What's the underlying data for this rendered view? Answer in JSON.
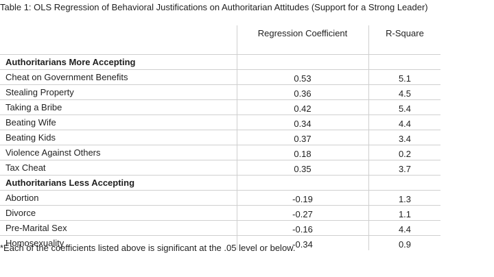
{
  "title": "Table 1: OLS Regression of Behavioral Justifications on Authoritarian Attitudes (Support for a Strong Leader)",
  "columns": {
    "regression": "Regression Coefficient",
    "rsquare": "R-Square"
  },
  "sections": [
    {
      "heading": "Authoritarians More Accepting",
      "rows": [
        {
          "label": "Cheat on Government Benefits",
          "coef": "0.53",
          "r2": "5.1"
        },
        {
          "label": "Stealing Property",
          "coef": "0.36",
          "r2": "4.5"
        },
        {
          "label": "Taking a Bribe",
          "coef": "0.42",
          "r2": "5.4"
        },
        {
          "label": "Beating Wife",
          "coef": "0.34",
          "r2": "4.4"
        },
        {
          "label": "Beating Kids",
          "coef": "0.37",
          "r2": "3.4"
        },
        {
          "label": "Violence Against Others",
          "coef": "0.18",
          "r2": "0.2"
        },
        {
          "label": "Tax Cheat",
          "coef": "0.35",
          "r2": "3.7"
        }
      ]
    },
    {
      "heading": "Authoritarians Less Accepting",
      "rows": [
        {
          "label": "Abortion",
          "coef": "-0.19",
          "r2": "1.3"
        },
        {
          "label": "Divorce",
          "coef": "-0.27",
          "r2": "1.1"
        },
        {
          "label": "Pre-Marital Sex",
          "coef": "-0.16",
          "r2": "4.4"
        },
        {
          "label": "Homosexuality",
          "coef": "-0.34",
          "r2": "0.9"
        }
      ]
    }
  ],
  "footnote": "*Each of the coefficients listed above is significant at the .05 level or below."
}
